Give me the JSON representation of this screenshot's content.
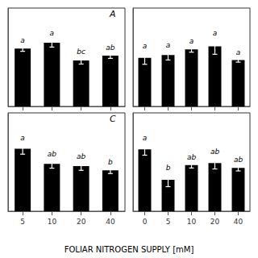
{
  "xlabel": "FOLIAR NITROGEN SUPPLY [mM]",
  "chart_data": [
    {
      "type": "bar",
      "title": "A",
      "categories": [
        "5",
        "10",
        "20",
        "40"
      ],
      "values": [
        0.82,
        0.9,
        0.65,
        0.72
      ],
      "errors": [
        0.04,
        0.06,
        0.05,
        0.04
      ],
      "annotations": [
        "a",
        "a",
        "bc",
        "ab"
      ],
      "color": "#000000",
      "ylim": [
        0,
        1.392
      ],
      "grid": false,
      "tick_labels": false
    },
    {
      "type": "bar",
      "categories": [
        "0",
        "5",
        "10",
        "20",
        "40"
      ],
      "values": [
        0.68,
        0.72,
        0.8,
        0.84,
        0.65
      ],
      "errors": [
        0.09,
        0.07,
        0.04,
        0.11,
        0.03
      ],
      "annotations": [
        "a",
        "a",
        "a",
        "a",
        "a"
      ],
      "color": "#000000",
      "ylim": [
        0,
        1.3775
      ],
      "grid": false,
      "tick_labels": false
    },
    {
      "type": "bar",
      "title": "C",
      "categories": [
        "5",
        "10",
        "20",
        "40"
      ],
      "values": [
        0.58,
        0.44,
        0.42,
        0.38
      ],
      "errors": [
        0.05,
        0.04,
        0.04,
        0.03
      ],
      "annotations": [
        "a",
        "ab",
        "ab",
        "b"
      ],
      "color": "#000000",
      "ylim": [
        0,
        0.9135
      ],
      "grid": false,
      "tick_labels": "x"
    },
    {
      "type": "bar",
      "categories": [
        "0",
        "5",
        "10",
        "20",
        "40"
      ],
      "values": [
        0.63,
        0.32,
        0.47,
        0.49,
        0.44
      ],
      "errors": [
        0.06,
        0.07,
        0.03,
        0.06,
        0.03
      ],
      "annotations": [
        "a",
        "b",
        "ab",
        "ab",
        "ab"
      ],
      "color": "#000000",
      "ylim": [
        0,
        1.0005
      ],
      "grid": false,
      "tick_labels": "x"
    }
  ]
}
